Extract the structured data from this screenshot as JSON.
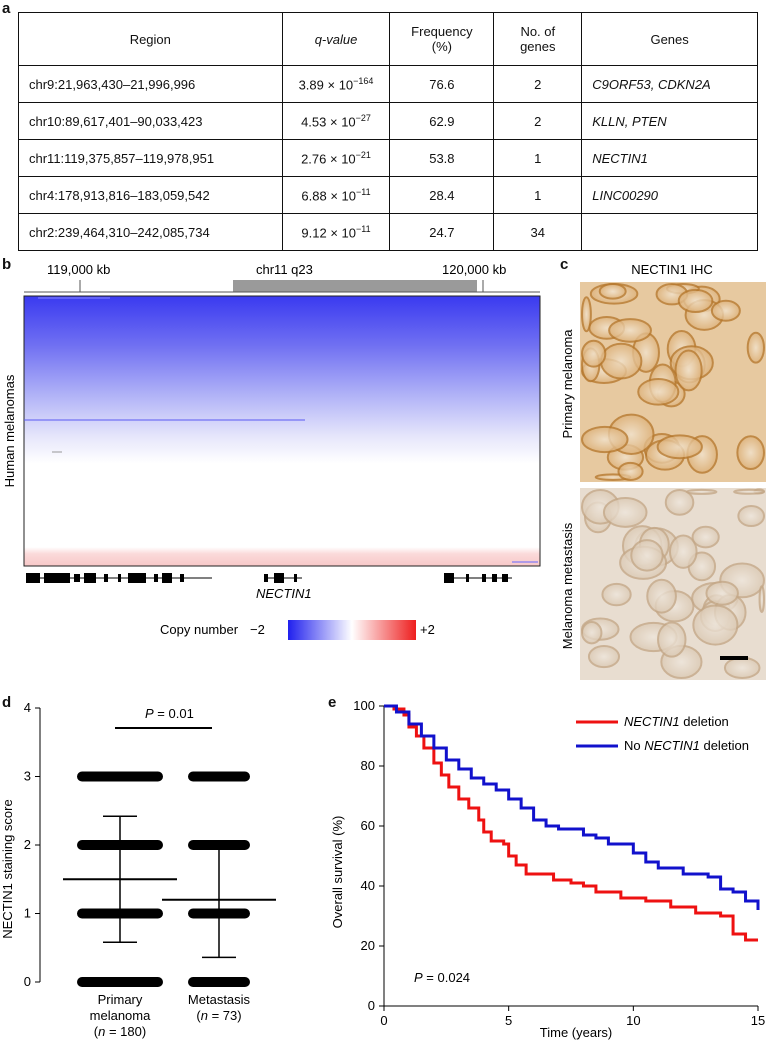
{
  "panel_labels": {
    "a": "a",
    "b": "b",
    "c": "c",
    "d": "d",
    "e": "e"
  },
  "table": {
    "headers": [
      "Region",
      "q-value",
      "Frequency (%)",
      "No. of genes",
      "Genes"
    ],
    "header_frequency_line1": "Frequency",
    "header_frequency_line2": "(%)",
    "rows": [
      {
        "region": "chr9:21,963,430–21,996,996",
        "q_mant": "3.89 × 10",
        "q_exp": "−164",
        "freq": "76.6",
        "ngenes": "2",
        "genes": "C9ORF53, CDKN2A"
      },
      {
        "region": "chr10:89,617,401–90,033,423",
        "q_mant": "4.53 × 10",
        "q_exp": "−27",
        "freq": "62.9",
        "ngenes": "2",
        "genes": "KLLN, PTEN"
      },
      {
        "region": "chr11:119,375,857–119,978,951",
        "q_mant": "2.76 × 10",
        "q_exp": "−21",
        "freq": "53.8",
        "ngenes": "1",
        "genes": "NECTIN1"
      },
      {
        "region": "chr4:178,913,816–183,059,542",
        "q_mant": "6.88 × 10",
        "q_exp": "−11",
        "freq": "28.4",
        "ngenes": "1",
        "genes": "LINC00290"
      },
      {
        "region": "chr2:239,464,310–242,085,734",
        "q_mant": "9.12 × 10",
        "q_exp": "−11",
        "freq": "24.7",
        "ngenes": "34",
        "genes": ""
      }
    ]
  },
  "panel_b": {
    "left_kb": "119,000 kb",
    "band": "chr11 q23",
    "right_kb": "120,000 kb",
    "ylabel": "Human melanomas",
    "gene_label": "NECTIN1",
    "legend_title": "Copy number",
    "legend_min": "−2",
    "legend_max": "+2",
    "colors": {
      "loss": "#3333ee",
      "gain": "#ee2222"
    }
  },
  "panel_c": {
    "title": "NECTIN1 IHC",
    "top_label": "Primary melanoma",
    "bottom_label": "Melanoma metastasis"
  },
  "chart_data": [
    {
      "type": "scatter",
      "ylabel": "NECTIN1 staining score",
      "ylim": [
        0,
        4
      ],
      "yticks": [
        "0",
        "1",
        "2",
        "3",
        "4"
      ],
      "groups": [
        {
          "line1": "Primary",
          "line2": "melanoma",
          "line3_n": "180",
          "values": [
            0,
            1,
            2,
            3
          ],
          "mean": 1.5,
          "sd_low": 0.58,
          "sd_high": 2.42
        },
        {
          "line1": "Metastasis",
          "line2_n": "73",
          "values": [
            0,
            1,
            2,
            3
          ],
          "mean": 1.2,
          "sd_low": 0.36,
          "sd_high": 2.04
        }
      ],
      "annotation_p": "= 0.01"
    },
    {
      "type": "line",
      "xlabel": "Time (years)",
      "ylabel": "Overall survival (%)",
      "xlim": [
        0,
        15
      ],
      "ylim": [
        0,
        100
      ],
      "xticks": [
        "0",
        "5",
        "10",
        "15"
      ],
      "yticks": [
        "0",
        "20",
        "40",
        "60",
        "80",
        "100"
      ],
      "annotation_p": "= 0.024",
      "series": [
        {
          "name_italic": "NECTIN1",
          "name_rest": " deletion",
          "color": "#ee1111",
          "points": [
            [
              0,
              100
            ],
            [
              0.4,
              99
            ],
            [
              0.8,
              97
            ],
            [
              1.0,
              93
            ],
            [
              1.3,
              90
            ],
            [
              1.6,
              86
            ],
            [
              2.0,
              81
            ],
            [
              2.3,
              77
            ],
            [
              2.6,
              73
            ],
            [
              3.0,
              69
            ],
            [
              3.4,
              66
            ],
            [
              3.8,
              62
            ],
            [
              4.0,
              58
            ],
            [
              4.3,
              55
            ],
            [
              4.8,
              54
            ],
            [
              5.0,
              50
            ],
            [
              5.3,
              47
            ],
            [
              5.7,
              44
            ],
            [
              6.0,
              44
            ],
            [
              6.8,
              42
            ],
            [
              7.5,
              41
            ],
            [
              8.0,
              40
            ],
            [
              8.5,
              38
            ],
            [
              9.5,
              36
            ],
            [
              10.5,
              35
            ],
            [
              11.5,
              33
            ],
            [
              12.5,
              31
            ],
            [
              13.5,
              30
            ],
            [
              14.0,
              24
            ],
            [
              14.3,
              24
            ],
            [
              14.5,
              22
            ],
            [
              15,
              22
            ]
          ]
        },
        {
          "name_prefix": "No ",
          "name_italic": "NECTIN1",
          "name_rest": " deletion",
          "color": "#1111cc",
          "points": [
            [
              0,
              100
            ],
            [
              0.5,
              98
            ],
            [
              1.0,
              94
            ],
            [
              1.5,
              90
            ],
            [
              2.0,
              86
            ],
            [
              2.5,
              82
            ],
            [
              3.0,
              79
            ],
            [
              3.5,
              76
            ],
            [
              4.0,
              74
            ],
            [
              4.5,
              72
            ],
            [
              5.0,
              69
            ],
            [
              5.5,
              66
            ],
            [
              6.0,
              62
            ],
            [
              6.5,
              60
            ],
            [
              7.0,
              59
            ],
            [
              8.0,
              57
            ],
            [
              8.5,
              56
            ],
            [
              9.0,
              54
            ],
            [
              10.0,
              51
            ],
            [
              10.5,
              48
            ],
            [
              11.0,
              46
            ],
            [
              12.0,
              44
            ],
            [
              13.0,
              43
            ],
            [
              13.5,
              39
            ],
            [
              14.0,
              38
            ],
            [
              14.5,
              35
            ],
            [
              15,
              32
            ]
          ]
        }
      ]
    }
  ]
}
